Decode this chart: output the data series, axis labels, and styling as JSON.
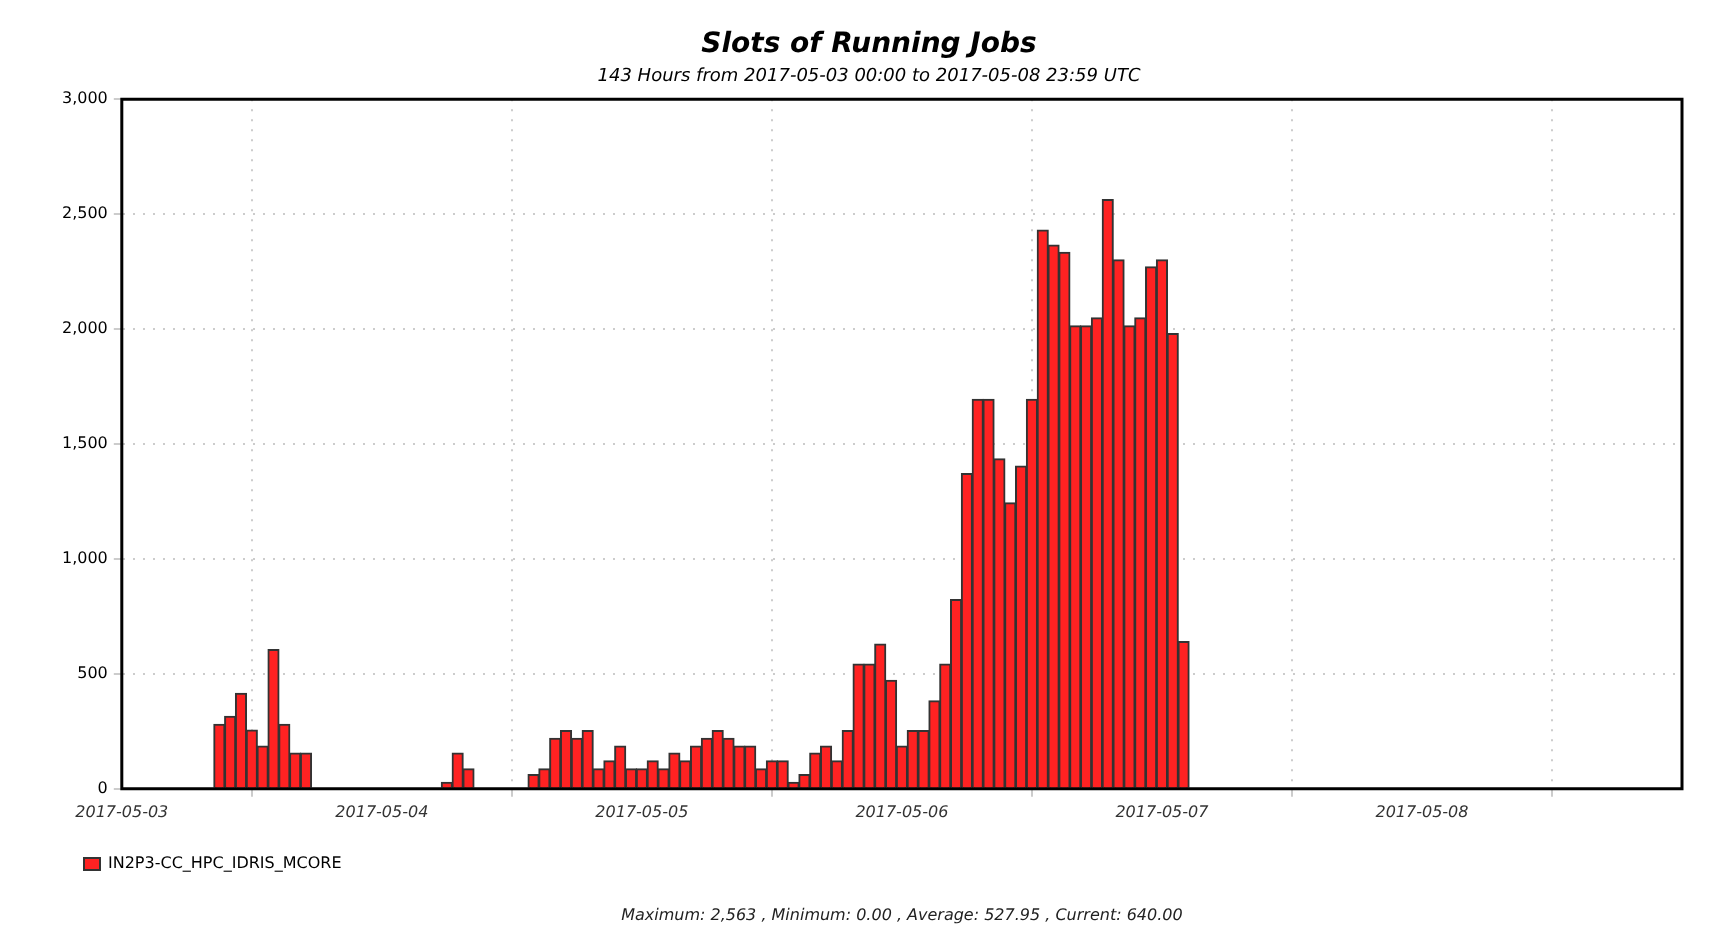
{
  "chart_data": {
    "type": "bar",
    "title": "Slots of Running Jobs",
    "subtitle": "143 Hours from 2017-05-03 00:00 to 2017-05-08 23:59 UTC",
    "x": [
      "2017-05-03T09:00",
      "2017-05-03T10:00",
      "2017-05-03T11:00",
      "2017-05-03T12:00",
      "2017-05-03T13:00",
      "2017-05-03T14:00",
      "2017-05-03T15:00",
      "2017-05-03T16:00",
      "2017-05-03T17:00",
      "2017-05-04T06:00",
      "2017-05-04T07:00",
      "2017-05-04T08:00",
      "2017-05-04T14:00",
      "2017-05-04T15:00",
      "2017-05-04T16:00",
      "2017-05-04T17:00",
      "2017-05-04T18:00",
      "2017-05-04T19:00",
      "2017-05-04T20:00",
      "2017-05-04T21:00",
      "2017-05-04T22:00",
      "2017-05-04T23:00",
      "2017-05-05T00:00",
      "2017-05-05T01:00",
      "2017-05-05T02:00",
      "2017-05-05T03:00",
      "2017-05-05T04:00",
      "2017-05-05T05:00",
      "2017-05-05T06:00",
      "2017-05-05T07:00",
      "2017-05-05T08:00",
      "2017-05-05T09:00",
      "2017-05-05T10:00",
      "2017-05-05T11:00",
      "2017-05-05T12:00",
      "2017-05-05T13:00",
      "2017-05-05T14:00",
      "2017-05-05T15:00",
      "2017-05-05T16:00",
      "2017-05-05T17:00",
      "2017-05-05T18:00",
      "2017-05-05T19:00",
      "2017-05-05T20:00",
      "2017-05-05T21:00",
      "2017-05-05T22:00",
      "2017-05-05T23:00",
      "2017-05-06T00:00",
      "2017-05-06T01:00",
      "2017-05-06T02:00",
      "2017-05-06T03:00",
      "2017-05-06T04:00",
      "2017-05-06T05:00",
      "2017-05-06T06:00",
      "2017-05-06T07:00",
      "2017-05-06T08:00",
      "2017-05-06T09:00",
      "2017-05-06T10:00",
      "2017-05-06T11:00",
      "2017-05-06T12:00",
      "2017-05-06T13:00",
      "2017-05-06T14:00",
      "2017-05-06T15:00",
      "2017-05-06T16:00",
      "2017-05-06T17:00",
      "2017-05-06T18:00",
      "2017-05-06T19:00",
      "2017-05-06T20:00",
      "2017-05-06T21:00",
      "2017-05-06T22:00",
      "2017-05-06T23:00",
      "2017-05-07T00:00",
      "2017-05-07T01:00",
      "2017-05-07T02:00"
    ],
    "series": [
      {
        "name": "IN2P3-CC_HPC_IDRIS_MCORE",
        "color": "#ff2222",
        "values": [
          280,
          315,
          415,
          255,
          185,
          605,
          280,
          155,
          155,
          28,
          155,
          87,
          62,
          87,
          219,
          253,
          219,
          253,
          87,
          121,
          185,
          87,
          87,
          121,
          87,
          155,
          121,
          185,
          219,
          253,
          219,
          185,
          185,
          87,
          121,
          121,
          28,
          62,
          155,
          185,
          121,
          253,
          542,
          542,
          629,
          472,
          185,
          253,
          253,
          382,
          542,
          823,
          1371,
          1694,
          1694,
          1435,
          1244,
          1404,
          1694,
          2430,
          2365,
          2334,
          2014,
          2014,
          2048,
          2563,
          2301,
          2014,
          2048,
          2270,
          2301,
          1980,
          640
        ]
      }
    ],
    "xlim": [
      "2017-05-03",
      "2017-05-09"
    ],
    "xticks": [
      "2017-05-03",
      "2017-05-04",
      "2017-05-05",
      "2017-05-06",
      "2017-05-07",
      "2017-05-08"
    ],
    "ylim": [
      0,
      3000
    ],
    "yticks": [
      0,
      500,
      {
        "value": 1000,
        "label": "1,000"
      },
      {
        "value": 1500,
        "label": "1,500"
      },
      {
        "value": 2000,
        "label": "2,000"
      },
      {
        "value": 2500,
        "label": "2,500"
      },
      {
        "value": 3000,
        "label": "3,000"
      }
    ],
    "grid": true,
    "legend": "bottom left",
    "annotations": [
      "Maximum: 2,563 , Minimum: 0.00 , Average: 527.95 , Current: 640.00"
    ]
  }
}
